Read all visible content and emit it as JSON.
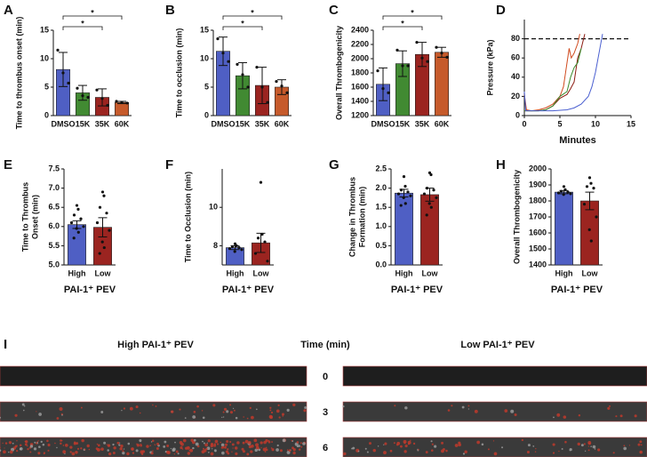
{
  "chart_data": [
    {
      "type": "bar",
      "panel": "A",
      "ylabel": [
        "Time to thrombus onset (min)"
      ],
      "categories": [
        "DMSO",
        "15K",
        "35K",
        "60K"
      ],
      "values": [
        8.1,
        4.0,
        3.2,
        2.3
      ],
      "errors": [
        3.0,
        1.3,
        1.5,
        0.2
      ],
      "colors": [
        "#4f5fc4",
        "#418a32",
        "#9b2420",
        "#c65a2b"
      ],
      "points": [
        [
          11.5,
          7.5,
          5.7
        ],
        [
          4.8,
          3.5,
          3.2
        ],
        [
          4.5,
          3.0,
          1.8
        ],
        [
          2.5,
          2.3,
          2.2
        ]
      ],
      "ylim": [
        0,
        15
      ],
      "yticks": [
        0,
        5,
        10,
        15
      ],
      "significance": [
        {
          "pair": [
            "DMSO",
            "60K"
          ],
          "label": "*"
        },
        {
          "pair": [
            "DMSO",
            "35K"
          ],
          "label": "*"
        }
      ]
    },
    {
      "type": "bar",
      "panel": "B",
      "ylabel": [
        "Time to occlusion (min)"
      ],
      "categories": [
        "DMSO",
        "15K",
        "35K",
        "60K"
      ],
      "values": [
        11.3,
        7.0,
        5.3,
        5.0
      ],
      "errors": [
        2.5,
        2.3,
        3.2,
        1.3
      ],
      "colors": [
        "#4f5fc4",
        "#418a32",
        "#9b2420",
        "#c65a2b"
      ],
      "points": [
        [
          13.5,
          11.0,
          9.5
        ],
        [
          9.0,
          7.2,
          5.0
        ],
        [
          8.5,
          5.0,
          2.3
        ],
        [
          6.0,
          5.2,
          4.0
        ]
      ],
      "ylim": [
        0,
        15
      ],
      "yticks": [
        0,
        5,
        10,
        15
      ],
      "significance": [
        {
          "pair": [
            "DMSO",
            "60K"
          ],
          "label": "*"
        },
        {
          "pair": [
            "DMSO",
            "35K"
          ],
          "label": "*"
        }
      ]
    },
    {
      "type": "bar",
      "panel": "C",
      "ylabel": [
        "Overall Thrombogenicity"
      ],
      "categories": [
        "DMSO",
        "15K",
        "35K",
        "60K"
      ],
      "values": [
        1640,
        1930,
        2060,
        2090
      ],
      "errors": [
        230,
        180,
        170,
        70
      ],
      "colors": [
        "#4f5fc4",
        "#418a32",
        "#9b2420",
        "#c65a2b"
      ],
      "points": [
        [
          1830,
          1580,
          1520
        ],
        [
          2120,
          1900,
          1900
        ],
        [
          2230,
          2010,
          1960
        ],
        [
          2160,
          2080,
          2020
        ]
      ],
      "ylim": [
        1200,
        2400
      ],
      "yticks": [
        1200,
        1400,
        1600,
        1800,
        2000,
        2200,
        2400
      ],
      "significance": [
        {
          "pair": [
            "DMSO",
            "60K"
          ],
          "label": "*"
        },
        {
          "pair": [
            "DMSO",
            "35K"
          ],
          "label": "*"
        }
      ]
    },
    {
      "type": "line",
      "panel": "D",
      "ylabel": [
        "Pressure (kPa)"
      ],
      "xlabel": "Minutes",
      "xlim": [
        0,
        15
      ],
      "xticks": [
        0,
        5,
        10,
        15
      ],
      "ylim": [
        0,
        100
      ],
      "yticks": [
        0,
        20,
        40,
        60,
        80
      ],
      "threshold": 80,
      "series": [
        {
          "color": "#d04a1e",
          "x": [
            0,
            0.3,
            1,
            2,
            3,
            4,
            5,
            5.5,
            6,
            6.3,
            6.6,
            7,
            7.5,
            7.8
          ],
          "values": [
            22,
            6,
            5,
            6,
            8,
            12,
            20,
            30,
            55,
            70,
            60,
            65,
            75,
            85
          ]
        },
        {
          "color": "#8b1a10",
          "x": [
            0,
            1,
            2,
            3,
            4,
            5,
            6,
            6.5,
            7,
            7.5,
            8,
            8.5
          ],
          "values": [
            5,
            5,
            5,
            6,
            10,
            18,
            22,
            28,
            35,
            60,
            70,
            85
          ]
        },
        {
          "color": "#3a8a2a",
          "x": [
            0,
            1,
            2,
            3,
            4,
            5,
            6,
            6.5,
            7,
            7.5,
            8
          ],
          "values": [
            5,
            5,
            5,
            6,
            10,
            20,
            25,
            40,
            50,
            55,
            70
          ]
        },
        {
          "color": "#4a5fd0",
          "x": [
            0,
            0.2,
            2,
            4,
            6,
            7,
            8,
            9,
            9.5,
            10,
            10.5,
            11
          ],
          "values": [
            25,
            5,
            5,
            5,
            6,
            8,
            12,
            20,
            30,
            45,
            65,
            85
          ]
        }
      ]
    },
    {
      "type": "bar",
      "panel": "E",
      "ylabel": [
        "Time to Thrombus",
        "Onset (min)"
      ],
      "xlabel": "PAI-1⁺ PEV",
      "categories": [
        "High",
        "Low"
      ],
      "values": [
        6.05,
        5.98
      ],
      "errors": [
        0.1,
        0.25
      ],
      "colors": [
        "#4f5fc4",
        "#9b2420"
      ],
      "points": [
        [
          6.55,
          6.45,
          6.3,
          6.2,
          6.1,
          6.0,
          5.95,
          5.85,
          5.7
        ],
        [
          6.9,
          6.8,
          6.5,
          6.35,
          6.1,
          5.9,
          5.6,
          5.45,
          5.3
        ]
      ],
      "ylim": [
        5,
        7.5
      ],
      "yticks": [
        {
          "value": 5,
          "label": "5.0"
        },
        5.5,
        {
          "value": 6,
          "label": "6.0"
        },
        6.5,
        {
          "value": 7,
          "label": "7.0"
        },
        7.5
      ]
    },
    {
      "type": "bar",
      "panel": "F",
      "ylabel": [
        "Time to Occlusion (min)"
      ],
      "xlabel": "PAI-1⁺ PEV",
      "categories": [
        "High",
        "Low"
      ],
      "values": [
        7.9,
        8.15
      ],
      "errors": [
        0.1,
        0.5
      ],
      "colors": [
        "#4f5fc4",
        "#9b2420"
      ],
      "points": [
        [
          8.1,
          8.0,
          7.95,
          7.9,
          7.85,
          7.8,
          7.7
        ],
        [
          11.3,
          8.6,
          8.4,
          8.2,
          7.6,
          7.2
        ]
      ],
      "ylim": [
        7,
        12
      ],
      "yticks": [
        8,
        10
      ]
    },
    {
      "type": "bar",
      "panel": "G",
      "ylabel": [
        "Change in Thrombus",
        "Formation (min)"
      ],
      "xlabel": "PAI-1⁺ PEV",
      "categories": [
        "High",
        "Low"
      ],
      "values": [
        1.87,
        1.83
      ],
      "errors": [
        0.1,
        0.17
      ],
      "colors": [
        "#4f5fc4",
        "#9b2420"
      ],
      "points": [
        [
          2.3,
          2.05,
          1.95,
          1.9,
          1.85,
          1.8,
          1.75,
          1.6,
          1.55
        ],
        [
          2.4,
          2.35,
          2.0,
          1.95,
          1.85,
          1.75,
          1.6,
          1.5,
          1.3
        ]
      ],
      "ylim": [
        0,
        2.5
      ],
      "yticks": [
        {
          "value": 0,
          "label": "0.0"
        },
        0.5,
        {
          "value": 1,
          "label": "1.0"
        },
        1.5,
        {
          "value": 2,
          "label": "2.0"
        },
        2.5
      ]
    },
    {
      "type": "bar",
      "panel": "H",
      "ylabel": [
        "Overall Thrombogenicity"
      ],
      "xlabel": "PAI-1⁺ PEV",
      "categories": [
        "High",
        "Low"
      ],
      "values": [
        1855,
        1800
      ],
      "errors": [
        10,
        55
      ],
      "colors": [
        "#4f5fc4",
        "#9b2420"
      ],
      "points": [
        [
          1890,
          1870,
          1860,
          1855,
          1850,
          1845,
          1840
        ],
        [
          1945,
          1910,
          1890,
          1880,
          1780,
          1700,
          1620,
          1550
        ]
      ],
      "ylim": [
        1400,
        2000
      ],
      "yticks": [
        1400,
        1500,
        1600,
        1700,
        1800,
        1900,
        2000
      ]
    }
  ],
  "image_panel": {
    "panel": "I",
    "left_title": "High PAI-1⁺ PEV",
    "center_title": "Time (min)",
    "right_title": "Low PAI-1⁺ PEV",
    "rows": [
      "0",
      "3",
      "6"
    ]
  }
}
